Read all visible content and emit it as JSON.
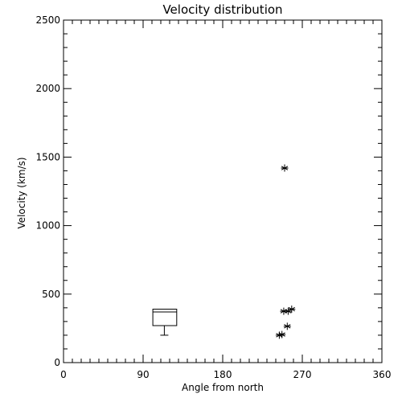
{
  "chart_data": {
    "type": "scatter",
    "title": "Velocity distribution",
    "xlabel": "Angle from north",
    "ylabel": "Velocity (km/s)",
    "xlim": [
      0,
      360
    ],
    "ylim": [
      0,
      2500
    ],
    "x_ticks": [
      0,
      90,
      180,
      270,
      360
    ],
    "x_tick_labels": [
      "0",
      "90",
      "180",
      "270",
      "360"
    ],
    "y_ticks": [
      0,
      500,
      1000,
      1500,
      2000,
      2500
    ],
    "y_tick_labels": [
      "0",
      "500",
      "1000",
      "1500",
      "2000",
      "2500"
    ],
    "grid": false,
    "legend": "none",
    "box_plot": {
      "x_left": 101,
      "x_right": 128,
      "x_center": 114,
      "q1": 270,
      "median": 370,
      "q3": 390,
      "min": 200,
      "max": 390
    },
    "points": [
      {
        "x": 250,
        "y": 1420
      },
      {
        "x": 249,
        "y": 375
      },
      {
        "x": 254,
        "y": 375
      },
      {
        "x": 258,
        "y": 390
      },
      {
        "x": 253,
        "y": 265
      },
      {
        "x": 244,
        "y": 200
      },
      {
        "x": 247,
        "y": 205
      }
    ],
    "marker": "asterisk",
    "colors": {
      "foreground": "#000000",
      "background": "#ffffff"
    }
  }
}
